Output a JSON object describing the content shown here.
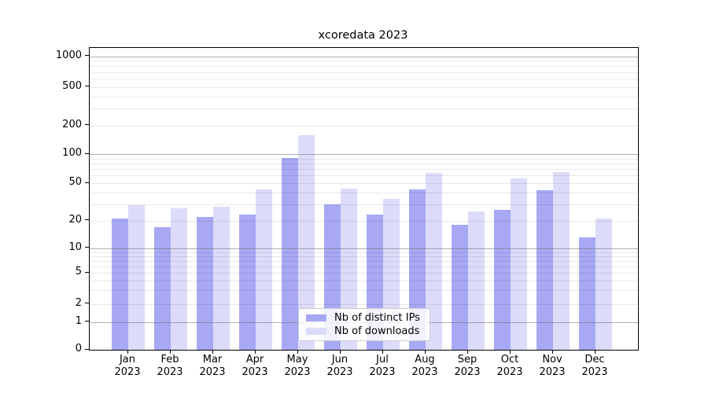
{
  "chart_data": {
    "type": "bar",
    "title": "xcoredata 2023",
    "x_categories": [
      "Jan",
      "Feb",
      "Mar",
      "Apr",
      "May",
      "Jun",
      "Jul",
      "Aug",
      "Sep",
      "Oct",
      "Nov",
      "Dec"
    ],
    "x_year": "2023",
    "series": [
      {
        "name": "Nb of distinct IPs",
        "color": "#a8a8f5",
        "values": [
          21,
          17,
          22,
          23,
          91,
          30,
          23,
          43,
          18,
          26,
          42,
          13
        ]
      },
      {
        "name": "Nb of downloads",
        "color": "#dcdcfa",
        "values": [
          29,
          27,
          28,
          43,
          160,
          44,
          34,
          64,
          25,
          56,
          65,
          21
        ]
      }
    ],
    "y_axis": {
      "scale": "symlog",
      "ticks": [
        0,
        1,
        2,
        5,
        10,
        20,
        50,
        100,
        200,
        500,
        1000
      ],
      "range": [
        0,
        1000
      ]
    },
    "grid": {
      "major": [
        1,
        10,
        100,
        1000
      ],
      "minor": [
        2,
        3,
        4,
        5,
        6,
        7,
        8,
        9,
        20,
        30,
        40,
        50,
        60,
        70,
        80,
        90,
        200,
        300,
        400,
        500,
        600,
        700,
        800,
        900
      ]
    },
    "legend_position": "lower center"
  },
  "colors": {
    "bar_distinct_ips": "#a8a8f5",
    "bar_downloads": "#dcdcfa",
    "major_grid": "#b3b3b3",
    "minor_grid": "#e8e8e8",
    "spine": "#000000",
    "background": "#ffffff",
    "legend_border": "#cccccc",
    "text": "#000000"
  }
}
